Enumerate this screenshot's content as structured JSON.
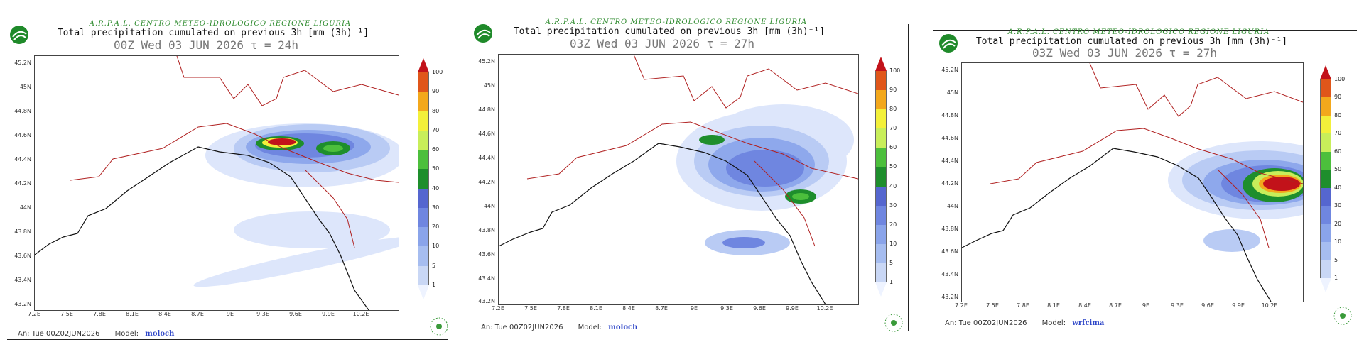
{
  "panels": [
    {
      "agency": "A.R.P.A.L. CENTRO METEO-IDROLOGICO REGIONE LIGURIA",
      "title": "Total precipitation cumulated on previous 3h [mm (3h)⁻¹]",
      "time": "00Z Wed 03 JUN 2026  τ = 24h",
      "analysis": "An: Tue 00Z02JUN2026",
      "model_label": "Model:",
      "model": "moloch"
    },
    {
      "agency": "A.R.P.A.L. CENTRO METEO-IDROLOGICO REGIONE LIGURIA",
      "title": "Total precipitation cumulated on previous 3h [mm (3h)⁻¹]",
      "time": "03Z Wed 03 JUN 2026  τ = 27h",
      "analysis": "An: Tue 00Z02JUN2026",
      "model_label": "Model:",
      "model": "moloch"
    },
    {
      "agency": "A.R.P.A.L. CENTRO METEO-IDROLOGICO REGIONE LIGURIA",
      "title": "Total precipitation cumulated on previous 3h [mm (3h)⁻¹]",
      "time": "03Z Wed 03 JUN 2026  τ = 27h",
      "analysis": "An: Tue 00Z02JUN2026",
      "model_label": "Model:",
      "model": "wrfcima"
    }
  ],
  "lat_ticks": [
    "45.2N",
    "45N",
    "44.8N",
    "44.6N",
    "44.4N",
    "44.2N",
    "44N",
    "43.8N",
    "43.6N",
    "43.4N",
    "43.2N"
  ],
  "lon_ticks": [
    "7.2E",
    "7.5E",
    "7.8E",
    "8.1E",
    "8.4E",
    "8.7E",
    "9E",
    "9.3E",
    "9.6E",
    "9.9E",
    "10.2E"
  ],
  "colorbar": {
    "levels": [
      "1",
      "5",
      "10",
      "20",
      "30",
      "40",
      "50",
      "60",
      "70",
      "80",
      "90",
      "100"
    ],
    "colors": [
      "#eef3ff",
      "#c9d7f5",
      "#a6bdf0",
      "#8aa4ea",
      "#6f86e0",
      "#5566cf",
      "#1e8e2c",
      "#4cbf3c",
      "#c8ee5a",
      "#f3f03a",
      "#f3a81c",
      "#e0561a",
      "#c2121a"
    ]
  },
  "colors": {
    "agency": "#2e8b2e",
    "border": "#b02020",
    "coast": "#111111",
    "model": "#2e46c8"
  }
}
